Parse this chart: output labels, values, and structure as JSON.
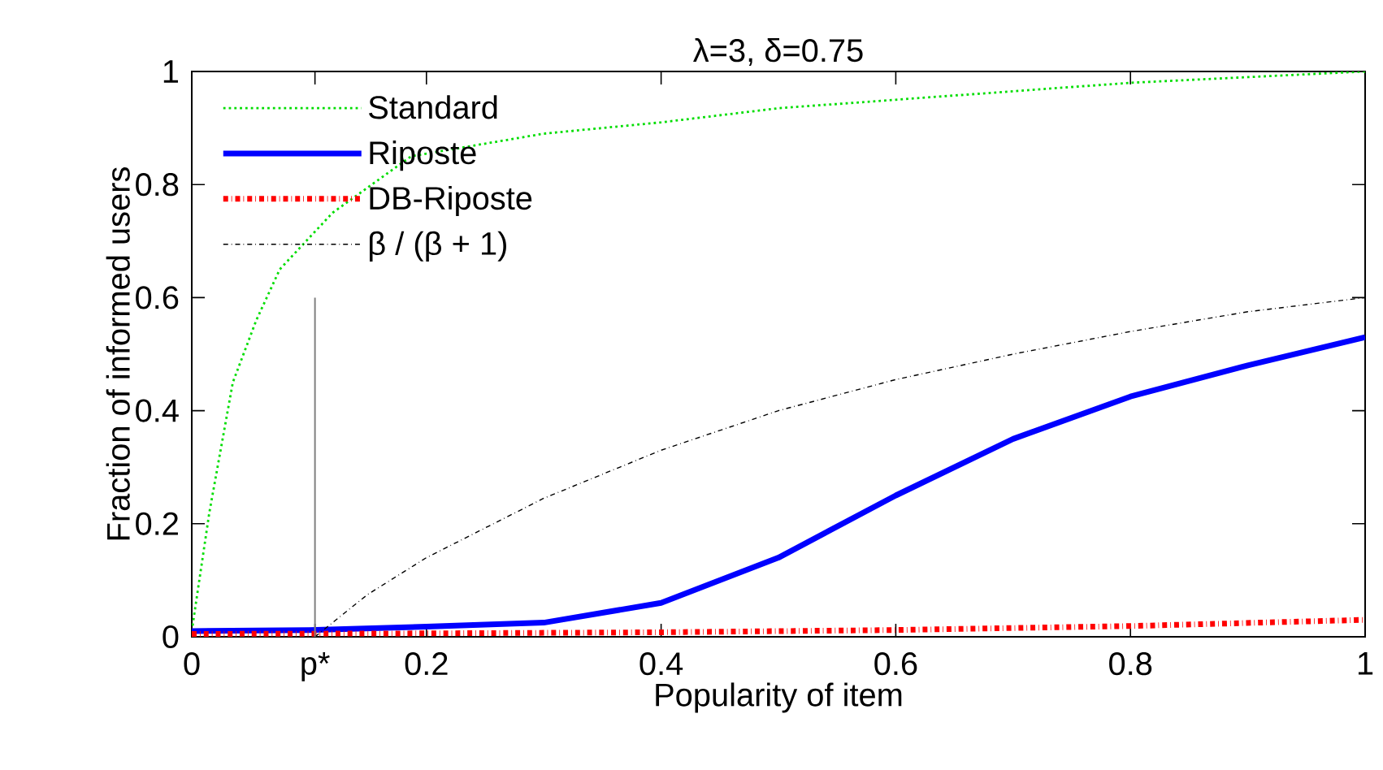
{
  "chart_data": {
    "type": "line",
    "title": "λ=3, δ=0.75",
    "xlabel": "Popularity of item",
    "ylabel": "Fraction of informed users",
    "xlim": [
      0,
      1
    ],
    "ylim": [
      0,
      1
    ],
    "xticks": [
      0,
      {
        "value": 0.105,
        "label": "p*"
      },
      0.2,
      0.4,
      0.6,
      0.8,
      1
    ],
    "yticks": [
      0,
      0.2,
      0.4,
      0.6,
      0.8,
      1
    ],
    "grid": false,
    "legend": "top left",
    "marker": "none",
    "series": [
      {
        "name": "Standard",
        "color": "#00dd00",
        "line_style": "dotted",
        "x": [
          0,
          0.015,
          0.035,
          0.055,
          0.075,
          0.12,
          0.187,
          0.3,
          0.4,
          0.5,
          0.6,
          0.7,
          0.8,
          0.9,
          1
        ],
        "values": [
          0.01,
          0.22,
          0.45,
          0.56,
          0.65,
          0.75,
          0.85,
          0.89,
          0.91,
          0.935,
          0.95,
          0.965,
          0.98,
          0.99,
          1
        ]
      },
      {
        "name": "Riposte",
        "color": "#0000ff",
        "line_style": "solid",
        "x": [
          0,
          0.1,
          0.2,
          0.3,
          0.4,
          0.5,
          0.6,
          0.7,
          0.8,
          0.9,
          1
        ],
        "values": [
          0.01,
          0.012,
          0.018,
          0.025,
          0.06,
          0.14,
          0.25,
          0.35,
          0.425,
          0.48,
          0.53
        ]
      },
      {
        "name": "DB-Riposte",
        "color": "#ff0000",
        "line_style": "dashdot",
        "x": [
          0,
          0.2,
          0.4,
          0.6,
          0.8,
          1
        ],
        "values": [
          0.005,
          0.006,
          0.008,
          0.012,
          0.019,
          0.03
        ]
      },
      {
        "name": "β / (β + 1)",
        "color": "#000000",
        "line_style": "dashdot",
        "x": [
          0.105,
          0.15,
          0.2,
          0.3,
          0.4,
          0.5,
          0.6,
          0.7,
          0.8,
          0.9,
          1
        ],
        "values": [
          0,
          0.075,
          0.14,
          0.245,
          0.33,
          0.4,
          0.455,
          0.5,
          0.54,
          0.575,
          0.6
        ]
      },
      {
        "color": "#808080",
        "line_style": "solid",
        "x": [
          0.105,
          0.105
        ],
        "values": [
          0,
          0.6
        ]
      }
    ]
  }
}
